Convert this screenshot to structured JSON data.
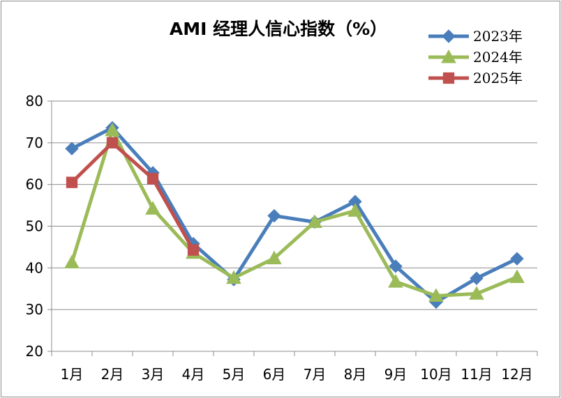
{
  "chart_data": {
    "type": "line",
    "title": "AMI 经理人信心指数（%）",
    "xlabel": "",
    "ylabel": "",
    "categories": [
      "1月",
      "2月",
      "3月",
      "4月",
      "5月",
      "6月",
      "7月",
      "8月",
      "9月",
      "10月",
      "11月",
      "12月"
    ],
    "ylim": [
      20,
      80
    ],
    "yticks": [
      20,
      30,
      40,
      50,
      60,
      70,
      80
    ],
    "grid": "horizontal",
    "legend_position": "top-right",
    "series": [
      {
        "name": "2023年",
        "color": "#4a7ebb",
        "marker": "diamond",
        "values": [
          68.6,
          73.6,
          62.8,
          45.8,
          37.2,
          52.5,
          51.0,
          55.9,
          40.4,
          31.8,
          37.5,
          42.2
        ]
      },
      {
        "name": "2024年",
        "color": "#9bbb59",
        "marker": "triangle",
        "values": [
          41.3,
          73.0,
          54.2,
          43.6,
          37.6,
          42.3,
          51.0,
          53.7,
          36.7,
          33.3,
          33.8,
          37.8
        ]
      },
      {
        "name": "2025年",
        "color": "#c0504d",
        "marker": "square",
        "values": [
          60.5,
          70.0,
          61.4,
          44.3,
          null,
          null,
          null,
          null,
          null,
          null,
          null,
          null
        ]
      }
    ]
  }
}
